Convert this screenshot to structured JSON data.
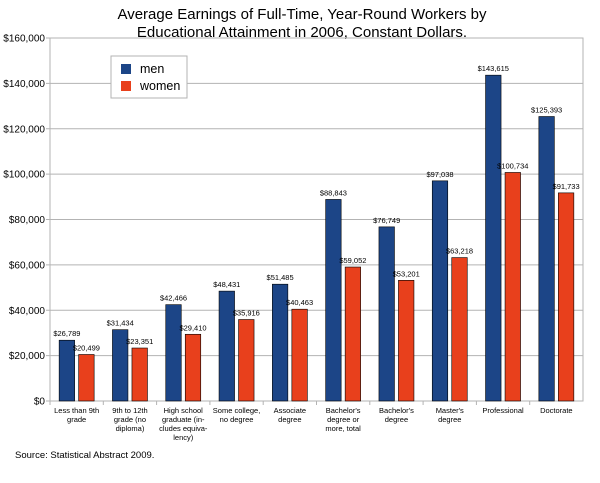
{
  "chart_data": {
    "type": "bar",
    "title": "Average Earnings of Full-Time, Year-Round Workers by",
    "subtitle": "Educational Attainment in 2006, Constant Dollars.",
    "xlabel": "",
    "ylabel": "",
    "ylim": [
      0,
      160000
    ],
    "yticks": [
      0,
      20000,
      40000,
      60000,
      80000,
      100000,
      120000,
      140000,
      160000
    ],
    "ytick_labels": [
      "$0",
      "$20,000",
      "$40,000",
      "$60,000",
      "$80,000",
      "$100,000",
      "$120,000",
      "$140,000",
      "$160,000"
    ],
    "grid": true,
    "legend_position": "top-left",
    "categories": [
      [
        "Less than 9th",
        "grade"
      ],
      [
        "9th to 12th",
        "grade (no",
        "diploma)"
      ],
      [
        "High school",
        "graduate (in-",
        "cludes equiva-",
        "lency)"
      ],
      [
        "Some college,",
        "no degree"
      ],
      [
        "Associate",
        "degree"
      ],
      [
        "Bachelor's",
        "degree or",
        "more, total"
      ],
      [
        "Bachelor's",
        "degree"
      ],
      [
        "Master's",
        "degree"
      ],
      [
        "Professional"
      ],
      [
        "Doctorate"
      ]
    ],
    "series": [
      {
        "name": "men",
        "color": "#1c4587",
        "values": [
          26789,
          31434,
          42466,
          48431,
          51485,
          88843,
          76749,
          97038,
          143615,
          125393
        ],
        "labels": [
          "$26,789",
          "$31,434",
          "$42,466",
          "$48,431",
          "$51,485",
          "$88,843",
          "$76,749",
          "$97,038",
          "$143,615",
          "$125,393"
        ]
      },
      {
        "name": "women",
        "color": "#e8401c",
        "values": [
          20499,
          23351,
          29410,
          35916,
          40463,
          59052,
          53201,
          63218,
          100734,
          91733
        ],
        "labels": [
          "$20,499",
          "$23,351",
          "$29,410",
          "$35,916",
          "$40,463",
          "$59,052",
          "$53,201",
          "$63,218",
          "$100,734",
          "$91,733"
        ]
      }
    ],
    "source": "Source: Statistical Abstract 2009."
  }
}
